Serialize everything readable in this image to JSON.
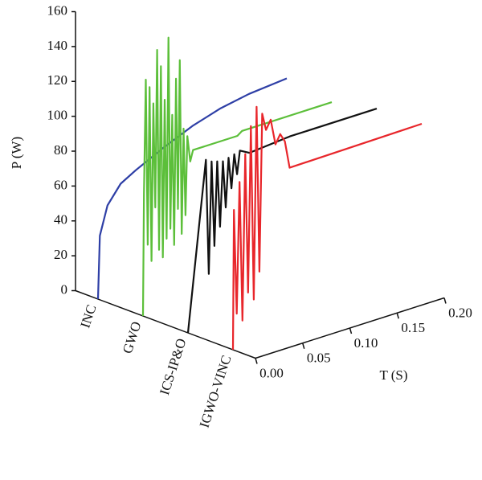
{
  "chart_data": {
    "type": "waterfall",
    "ylabel": "P (W)",
    "xlabel": "T (S)",
    "ylim": [
      0,
      160
    ],
    "yticks": [
      0,
      20,
      40,
      60,
      80,
      100,
      120,
      140,
      160
    ],
    "xlim": [
      0,
      0.2
    ],
    "xticks": [
      {
        "value": 0,
        "label": "0.00"
      },
      0.05,
      {
        "value": 0.1,
        "label": "0.10"
      },
      0.15,
      {
        "value": 0.2,
        "label": "0.20"
      }
    ],
    "series": [
      {
        "name": "INC",
        "color": "#2e3fa6",
        "x": [
          0,
          0.002,
          0.01,
          0.024,
          0.04,
          0.07,
          0.1,
          0.13,
          0.16,
          0.2
        ],
        "values": [
          0,
          36,
          52,
          62,
          67,
          75,
          82,
          87,
          90,
          92
        ]
      },
      {
        "name": "GWO",
        "color": "#5cbf3a",
        "x": [
          0,
          0.001,
          0.003,
          0.005,
          0.007,
          0.009,
          0.011,
          0.013,
          0.015,
          0.017,
          0.019,
          0.021,
          0.023,
          0.025,
          0.027,
          0.029,
          0.031,
          0.033,
          0.035,
          0.037,
          0.039,
          0.041,
          0.043,
          0.045,
          0.047,
          0.05,
          0.053,
          0.1,
          0.105,
          0.2
        ],
        "values": [
          0,
          70,
          135,
          40,
          130,
          30,
          120,
          60,
          150,
          35,
          140,
          30,
          120,
          40,
          155,
          45,
          110,
          35,
          130,
          55,
          140,
          40,
          100,
          50,
          95,
          80,
          86,
          86,
          88,
          88
        ]
      },
      {
        "name": "ICS-IP&O",
        "color": "#111111",
        "x": [
          0,
          0.019,
          0.022,
          0.025,
          0.028,
          0.031,
          0.034,
          0.037,
          0.04,
          0.043,
          0.046,
          0.049,
          0.052,
          0.055,
          0.065,
          0.108,
          0.2
        ],
        "values": [
          0,
          96,
          30,
          94,
          45,
          93,
          55,
          92,
          65,
          93,
          75,
          94,
          82,
          95,
          92,
          94,
          94
        ]
      },
      {
        "name": "IGWO-VINC",
        "color": "#e8262b",
        "x": [
          0,
          0.001,
          0.004,
          0.007,
          0.01,
          0.013,
          0.016,
          0.019,
          0.022,
          0.025,
          0.028,
          0.031,
          0.035,
          0.04,
          0.045,
          0.05,
          0.055,
          0.06,
          0.2
        ],
        "values": [
          0,
          80,
          20,
          95,
          15,
          110,
          30,
          125,
          25,
          135,
          40,
          130,
          120,
          125,
          110,
          115,
          110,
          94,
          95
        ]
      }
    ]
  }
}
